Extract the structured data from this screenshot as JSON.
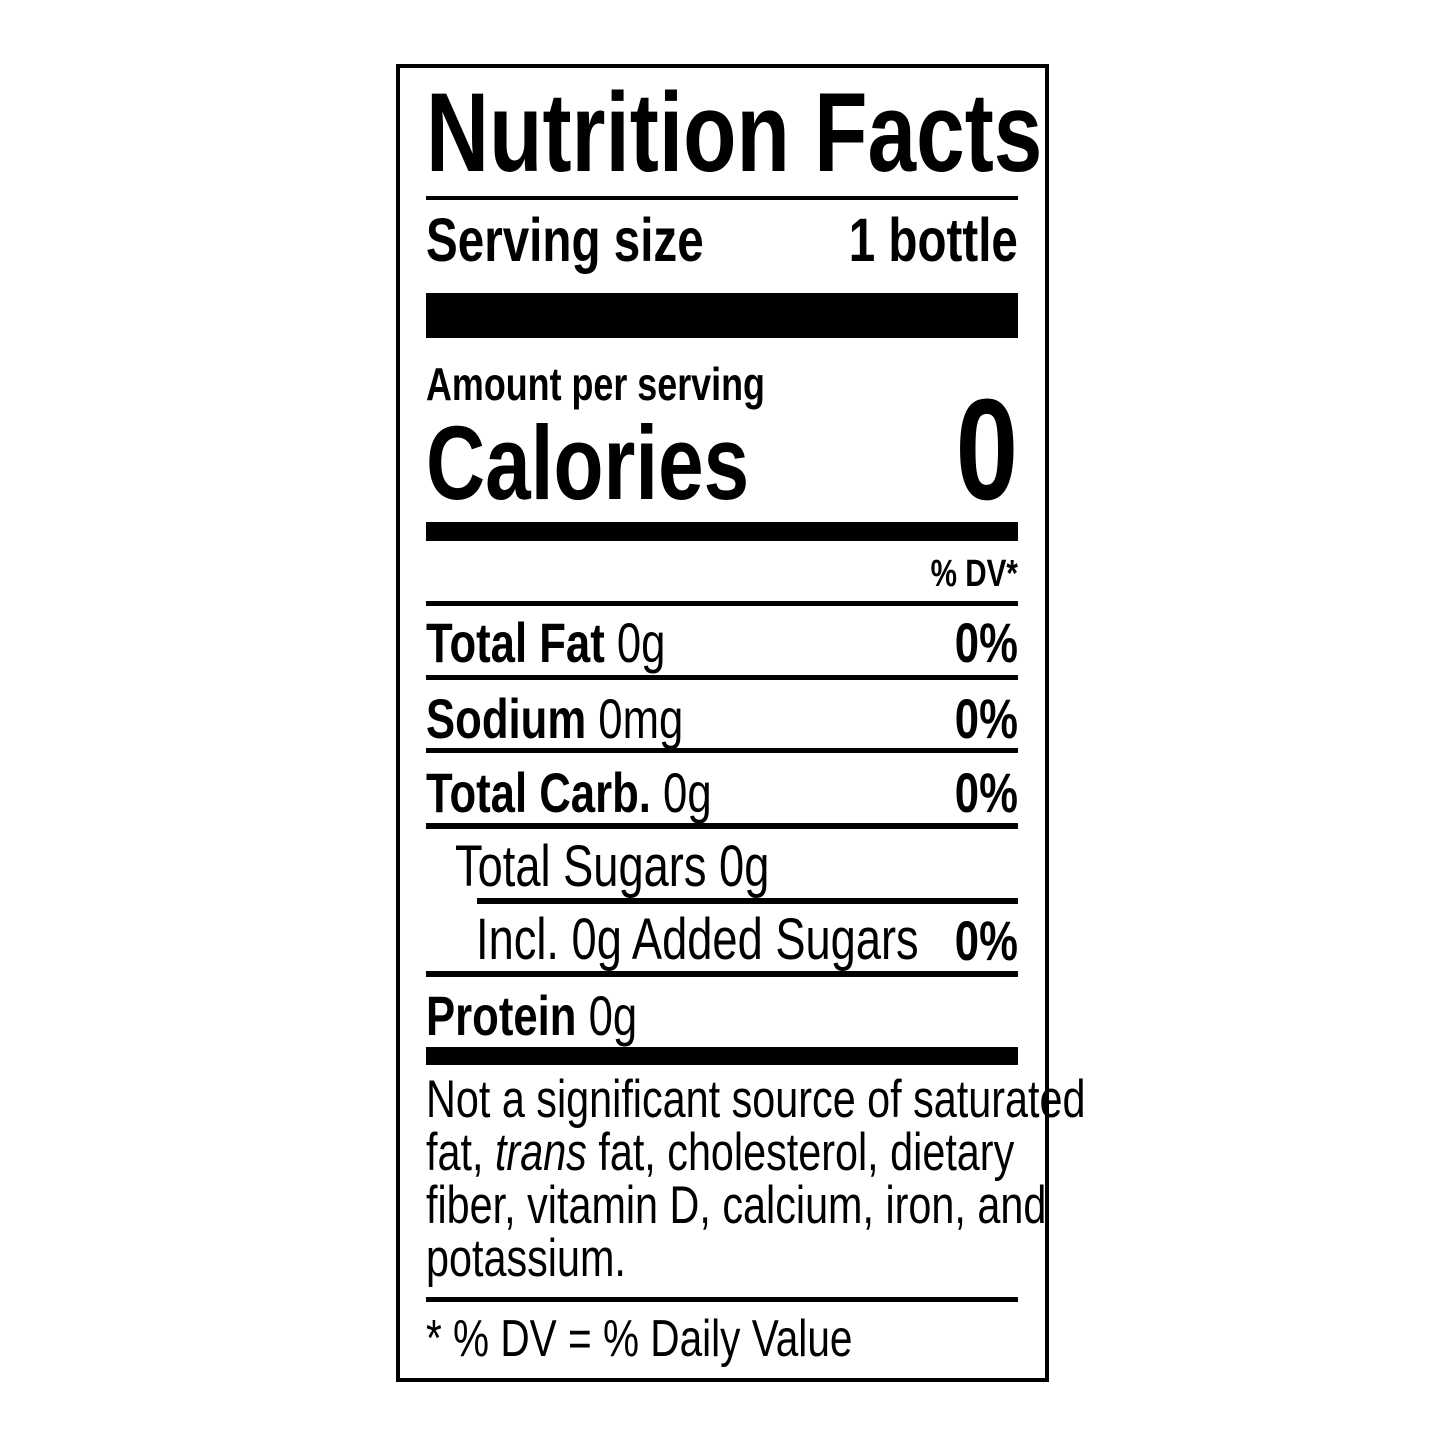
{
  "title": "Nutrition Facts",
  "serving_size": {
    "label": "Serving size",
    "value": "1 bottle"
  },
  "amount_per_serving": "Amount per serving",
  "calories": {
    "label": "Calories",
    "value": "0"
  },
  "dv_header": "% DV*",
  "nutrients": [
    {
      "name": "Total Fat",
      "amount": "0g",
      "dv": "0%"
    },
    {
      "name": "Sodium",
      "amount": "0mg",
      "dv": "0%"
    },
    {
      "name": "Total Carb.",
      "amount": "0g",
      "dv": "0%"
    },
    {
      "name": "Total Sugars 0g"
    },
    {
      "name": "Incl. 0g Added Sugars",
      "dv": "0%"
    },
    {
      "name": "Protein",
      "amount": "0g"
    }
  ],
  "footnote": {
    "line1": "Not a significant source of saturated",
    "line2_a": "fat, ",
    "line2_italic": "trans",
    "line2_b": " fat, cholesterol, dietary",
    "line3": "fiber, vitamin D, calcium, iron, and",
    "line4": "potassium."
  },
  "dv_definition": "* % DV = % Daily Value"
}
